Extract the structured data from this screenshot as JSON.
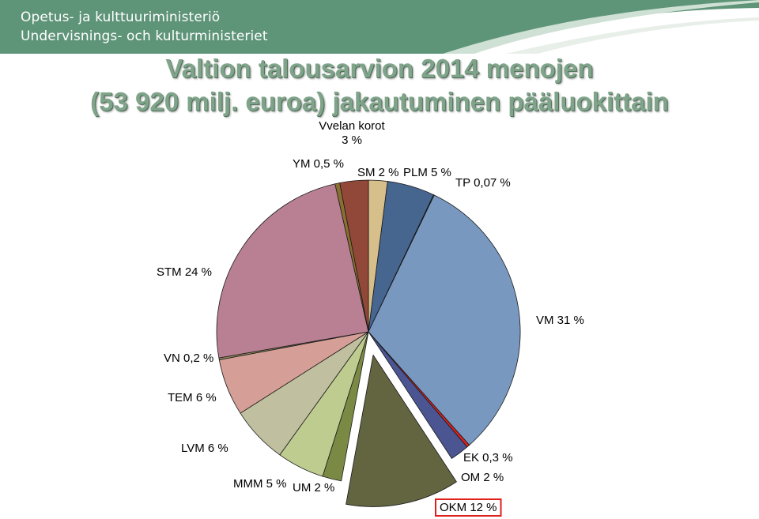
{
  "header": {
    "line1": "Opetus- ja kulttuuriministeriö",
    "line2": "Undervisnings- och kulturministeriet",
    "brand_color": "#5e9478"
  },
  "chart_data": {
    "type": "pie",
    "title_line1": "Valtion talousarvion 2014 menojen",
    "title_line2": "(53 920 milj. euroa) jakautuminen pääluokittain",
    "start": "12 o'clock",
    "direction": "clockwise",
    "exploded": [
      "OKM"
    ],
    "highlighted": [
      "OKM"
    ],
    "slices": [
      {
        "key": "SM",
        "label": "SM 2 %",
        "value": 2,
        "color": "#d7bf8c"
      },
      {
        "key": "PLM",
        "label": "PLM 5 %",
        "value": 5,
        "color": "#46658f"
      },
      {
        "key": "TP",
        "label": "TP 0,07 %",
        "value": 0.07,
        "color": "#1f3a5c"
      },
      {
        "key": "VM",
        "label": "VM 31 %",
        "value": 31,
        "color": "#7898c0"
      },
      {
        "key": "EK",
        "label": "EK 0,3 %",
        "value": 0.3,
        "color": "#e0201c"
      },
      {
        "key": "OM",
        "label": "OM 2 %",
        "value": 2,
        "color": "#4a5592"
      },
      {
        "key": "OKM",
        "label": "OKM 12 %",
        "value": 12,
        "color": "#626540"
      },
      {
        "key": "UM",
        "label": "UM 2 %",
        "value": 2,
        "color": "#7a8a44"
      },
      {
        "key": "MMM",
        "label": "MMM 5 %",
        "value": 5,
        "color": "#bfcc90"
      },
      {
        "key": "LVM",
        "label": "LVM 6 %",
        "value": 6,
        "color": "#c0c0a0"
      },
      {
        "key": "TEM",
        "label": "TEM 6 %",
        "value": 6,
        "color": "#d59e96"
      },
      {
        "key": "VN",
        "label": "VN 0,2 %",
        "value": 0.2,
        "color": "#8f8858"
      },
      {
        "key": "STM",
        "label": "STM 24 %",
        "value": 24,
        "color": "#b88092"
      },
      {
        "key": "YM",
        "label": "YM 0,5 %",
        "value": 0.5,
        "color": "#8a7030"
      },
      {
        "key": "Vvelan",
        "label": [
          "Vvelan korot",
          "3 %"
        ],
        "value": 3,
        "color": "#924838"
      }
    ]
  }
}
